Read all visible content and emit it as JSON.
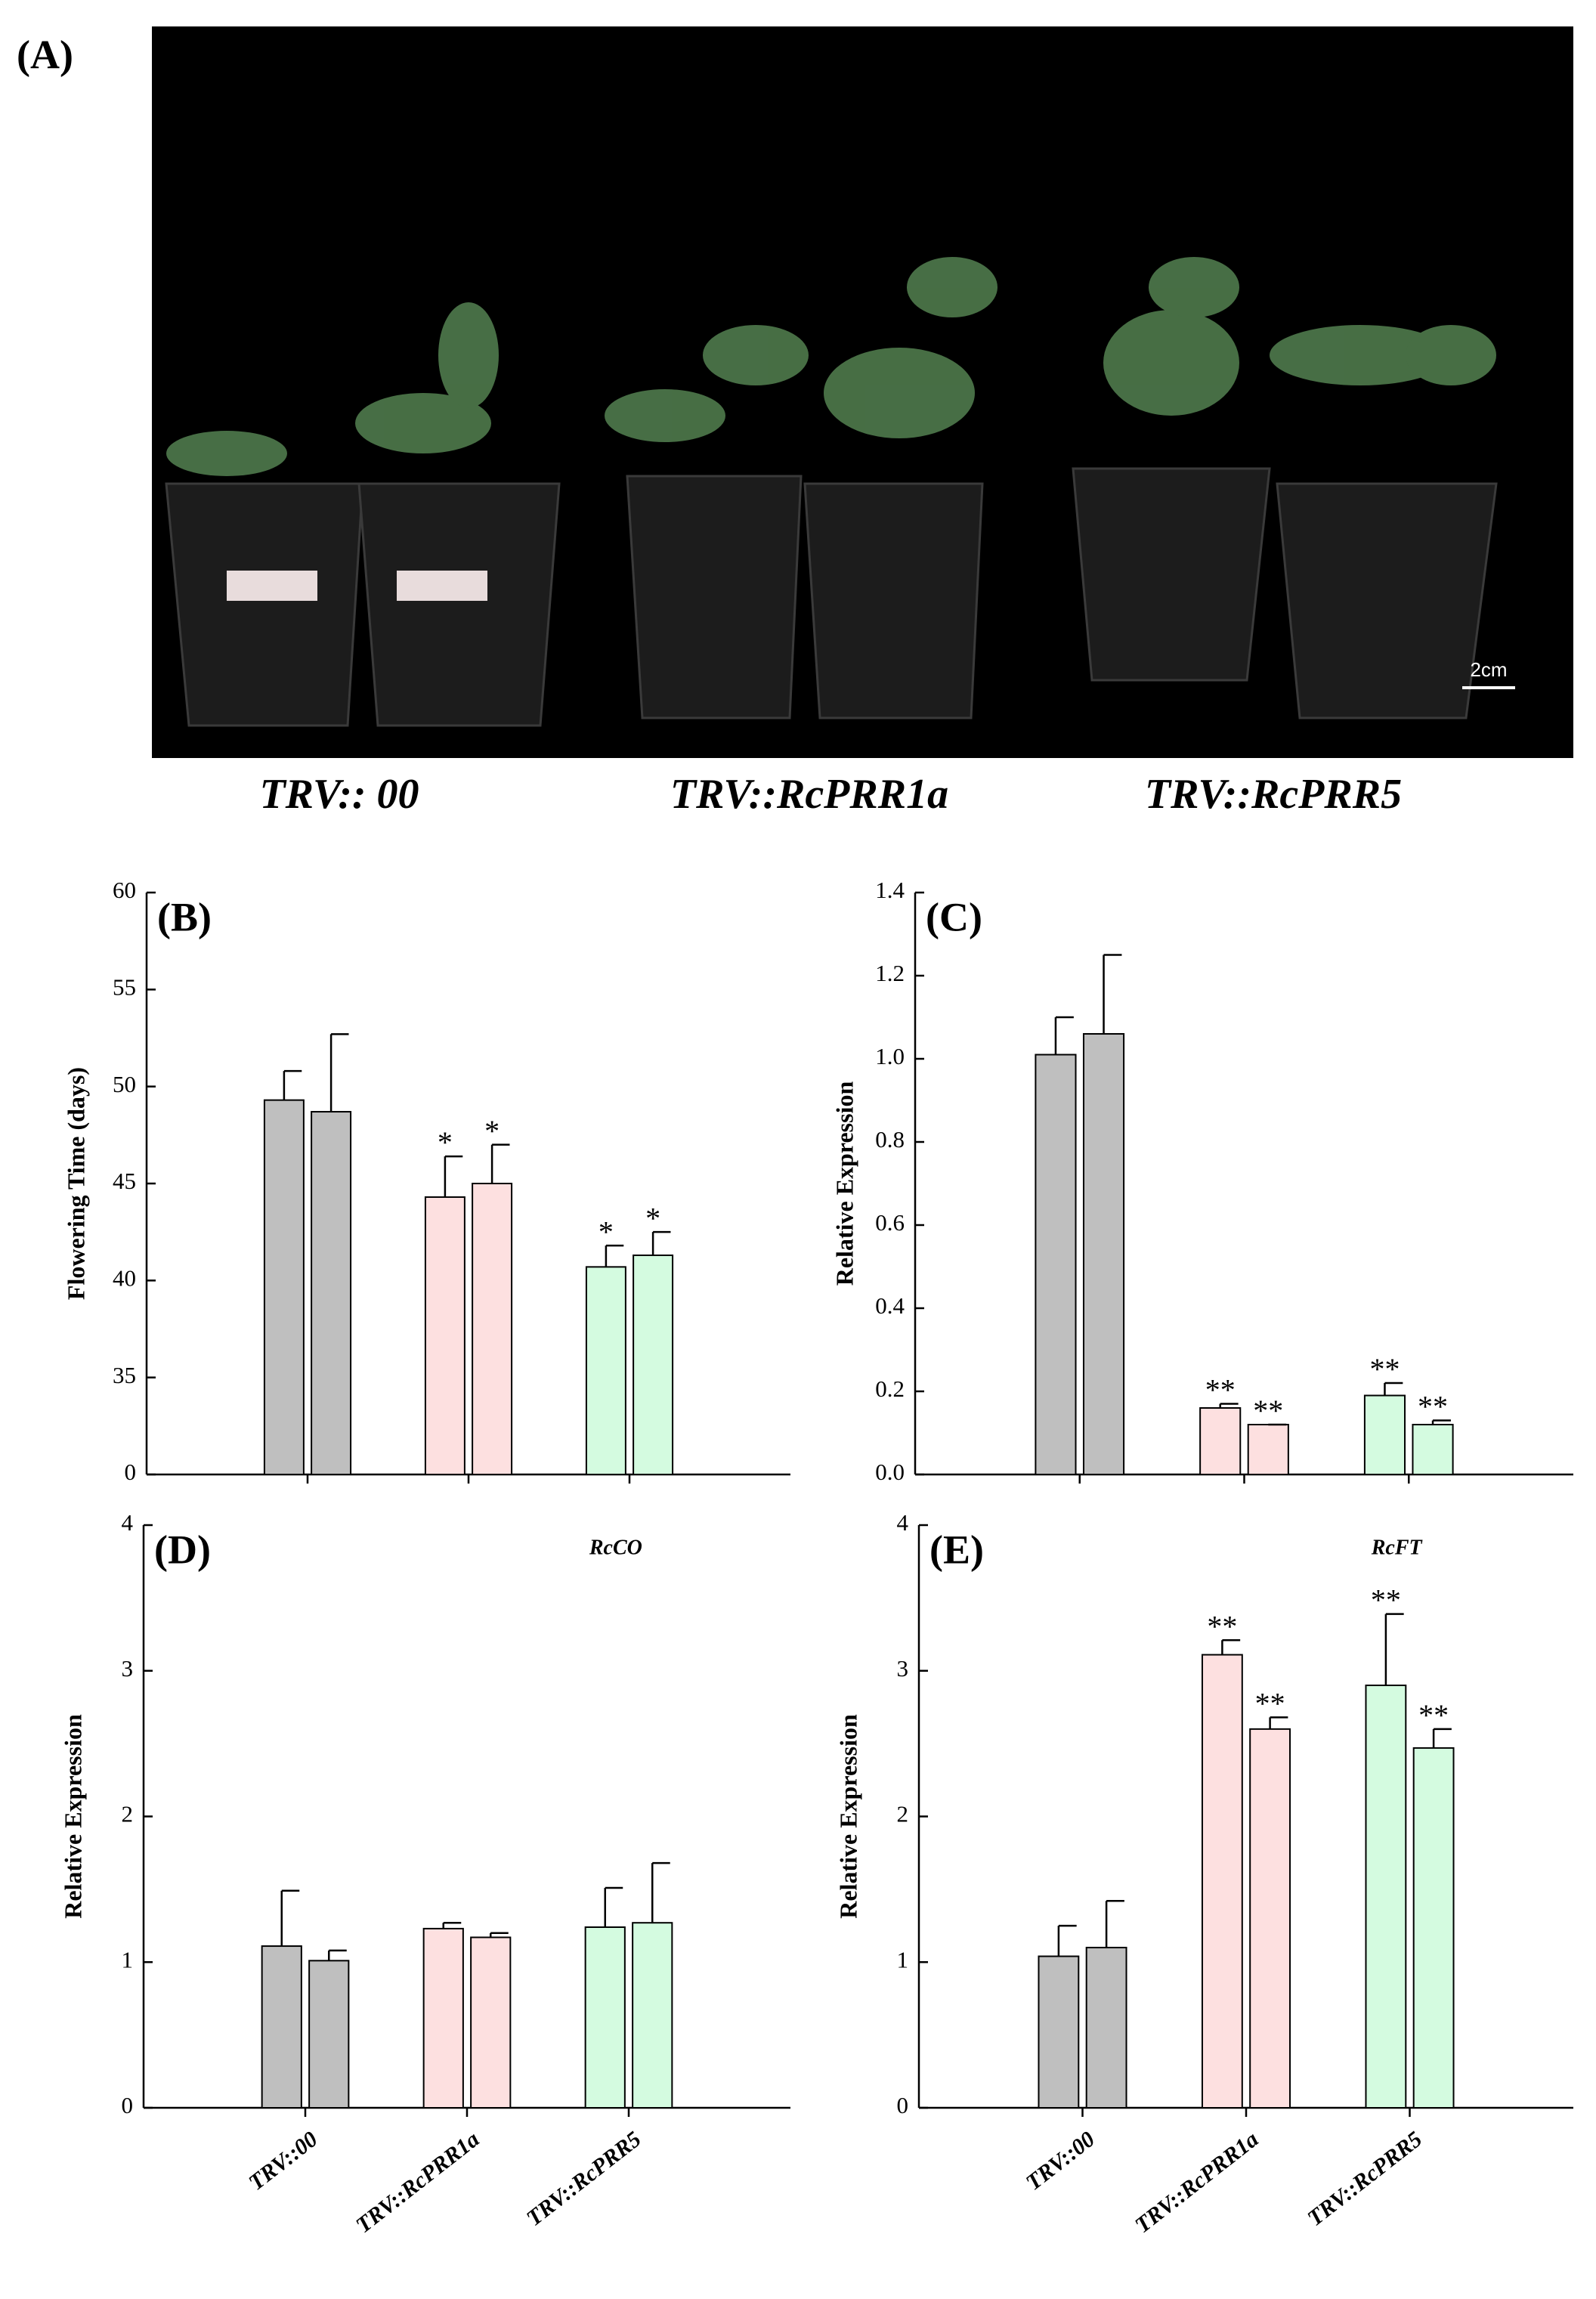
{
  "panel_a": {
    "label": "(A)",
    "captions": [
      "TRV:: 00",
      "TRV::RcPRR1a",
      "TRV::RcPRR5"
    ],
    "scale_bar": "2cm"
  },
  "chart_data": [
    {
      "type": "bar",
      "label": "(B)",
      "ylabel": "Flowering Time (days)",
      "categories": [
        null,
        null,
        null
      ],
      "colors": [
        "#bfbfbf",
        "#fde0e0",
        "#d4fbe0"
      ],
      "values": [
        [
          49.3,
          48.7
        ],
        [
          44.3,
          45.0
        ],
        [
          40.7,
          41.3
        ]
      ],
      "errors": [
        [
          1.5,
          4.0
        ],
        [
          2.1,
          2.0
        ],
        [
          1.1,
          1.2
        ]
      ],
      "significance": [
        [
          null,
          null
        ],
        [
          "*",
          "*"
        ],
        [
          "*",
          "*"
        ]
      ],
      "ylim": [
        0,
        60
      ],
      "yticks": [
        0,
        35,
        40,
        45,
        50,
        55,
        60
      ],
      "axis_break": [
        0,
        35
      ]
    },
    {
      "type": "bar",
      "label": "(C)",
      "ylabel": "Relative Expression",
      "categories": [
        null,
        null,
        null
      ],
      "colors": [
        "#bfbfbf",
        "#fde0e0",
        "#d4fbe0"
      ],
      "values": [
        [
          1.01,
          1.06
        ],
        [
          0.16,
          0.12
        ],
        [
          0.19,
          0.12
        ]
      ],
      "errors": [
        [
          0.09,
          0.19
        ],
        [
          0.01,
          0.0
        ],
        [
          0.03,
          0.01
        ]
      ],
      "significance": [
        [
          null,
          null
        ],
        [
          "**",
          "**"
        ],
        [
          "**",
          "**"
        ]
      ],
      "ylim": [
        0,
        1.4
      ],
      "yticks": [
        {
          "value": 0,
          "label": "0.0"
        },
        0.2,
        0.4,
        0.6,
        0.8,
        {
          "value": 1,
          "label": "1.0"
        },
        1.2,
        1.4
      ]
    },
    {
      "type": "bar",
      "label": "(D)",
      "ylabel": "Relative Expression",
      "annotation": "RcCO",
      "categories": [
        "TRV::00",
        "TRV::RcPRR1a",
        "TRV::RcPRR5"
      ],
      "colors": [
        "#bfbfbf",
        "#fde0e0",
        "#d4fbe0"
      ],
      "values": [
        [
          1.11,
          1.01
        ],
        [
          1.23,
          1.17
        ],
        [
          1.24,
          1.27
        ]
      ],
      "errors": [
        [
          0.38,
          0.07
        ],
        [
          0.04,
          0.03
        ],
        [
          0.27,
          0.41
        ]
      ],
      "significance": [
        [
          null,
          null
        ],
        [
          null,
          null
        ],
        [
          null,
          null
        ]
      ],
      "ylim": [
        0,
        4
      ],
      "yticks": [
        0,
        1,
        2,
        3,
        4
      ]
    },
    {
      "type": "bar",
      "label": "(E)",
      "ylabel": "Relative Expression",
      "annotation": "RcFT",
      "categories": [
        "TRV::00",
        "TRV::RcPRR1a",
        "TRV::RcPRR5"
      ],
      "colors": [
        "#bfbfbf",
        "#fde0e0",
        "#d4fbe0"
      ],
      "values": [
        [
          1.04,
          1.1
        ],
        [
          3.11,
          2.6
        ],
        [
          2.9,
          2.47
        ]
      ],
      "errors": [
        [
          0.21,
          0.32
        ],
        [
          0.1,
          0.08
        ],
        [
          0.49,
          0.13
        ]
      ],
      "significance": [
        [
          null,
          null
        ],
        [
          "**",
          "**"
        ],
        [
          "**",
          "**"
        ]
      ],
      "ylim": [
        0,
        4
      ],
      "yticks": [
        0,
        1,
        2,
        3,
        4
      ]
    }
  ]
}
